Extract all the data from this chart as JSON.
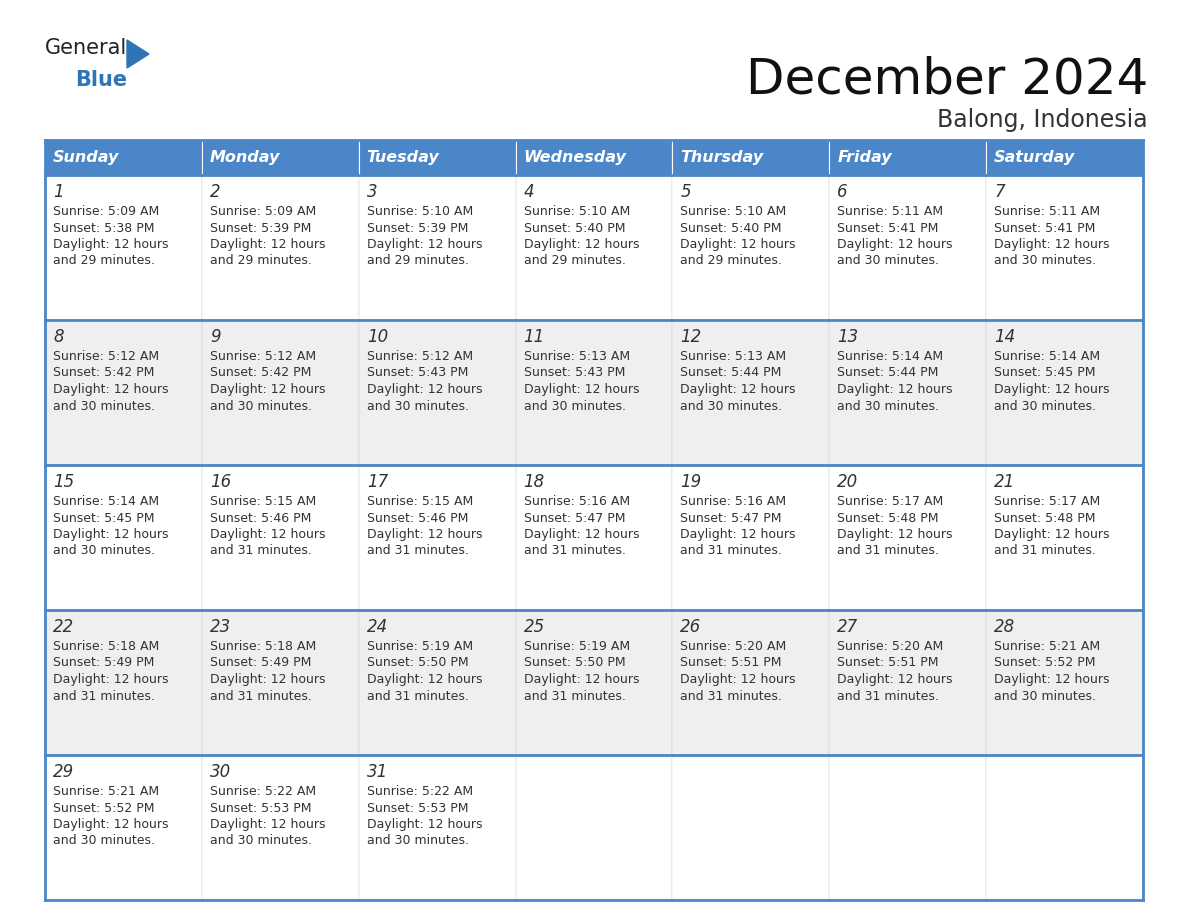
{
  "title": "December 2024",
  "subtitle": "Balong, Indonesia",
  "header_color": "#4a86c8",
  "header_text_color": "#FFFFFF",
  "border_color": "#4a86c8",
  "cell_bg_even": "#FFFFFF",
  "cell_bg_odd": "#EFEFEF",
  "text_color": "#333333",
  "days_of_week": [
    "Sunday",
    "Monday",
    "Tuesday",
    "Wednesday",
    "Thursday",
    "Friday",
    "Saturday"
  ],
  "calendar_data": [
    [
      {
        "day": "1",
        "sunrise": "5:09 AM",
        "sunset": "5:38 PM",
        "daylight_line1": "Daylight: 12 hours",
        "daylight_line2": "and 29 minutes."
      },
      {
        "day": "2",
        "sunrise": "5:09 AM",
        "sunset": "5:39 PM",
        "daylight_line1": "Daylight: 12 hours",
        "daylight_line2": "and 29 minutes."
      },
      {
        "day": "3",
        "sunrise": "5:10 AM",
        "sunset": "5:39 PM",
        "daylight_line1": "Daylight: 12 hours",
        "daylight_line2": "and 29 minutes."
      },
      {
        "day": "4",
        "sunrise": "5:10 AM",
        "sunset": "5:40 PM",
        "daylight_line1": "Daylight: 12 hours",
        "daylight_line2": "and 29 minutes."
      },
      {
        "day": "5",
        "sunrise": "5:10 AM",
        "sunset": "5:40 PM",
        "daylight_line1": "Daylight: 12 hours",
        "daylight_line2": "and 29 minutes."
      },
      {
        "day": "6",
        "sunrise": "5:11 AM",
        "sunset": "5:41 PM",
        "daylight_line1": "Daylight: 12 hours",
        "daylight_line2": "and 30 minutes."
      },
      {
        "day": "7",
        "sunrise": "5:11 AM",
        "sunset": "5:41 PM",
        "daylight_line1": "Daylight: 12 hours",
        "daylight_line2": "and 30 minutes."
      }
    ],
    [
      {
        "day": "8",
        "sunrise": "5:12 AM",
        "sunset": "5:42 PM",
        "daylight_line1": "Daylight: 12 hours",
        "daylight_line2": "and 30 minutes."
      },
      {
        "day": "9",
        "sunrise": "5:12 AM",
        "sunset": "5:42 PM",
        "daylight_line1": "Daylight: 12 hours",
        "daylight_line2": "and 30 minutes."
      },
      {
        "day": "10",
        "sunrise": "5:12 AM",
        "sunset": "5:43 PM",
        "daylight_line1": "Daylight: 12 hours",
        "daylight_line2": "and 30 minutes."
      },
      {
        "day": "11",
        "sunrise": "5:13 AM",
        "sunset": "5:43 PM",
        "daylight_line1": "Daylight: 12 hours",
        "daylight_line2": "and 30 minutes."
      },
      {
        "day": "12",
        "sunrise": "5:13 AM",
        "sunset": "5:44 PM",
        "daylight_line1": "Daylight: 12 hours",
        "daylight_line2": "and 30 minutes."
      },
      {
        "day": "13",
        "sunrise": "5:14 AM",
        "sunset": "5:44 PM",
        "daylight_line1": "Daylight: 12 hours",
        "daylight_line2": "and 30 minutes."
      },
      {
        "day": "14",
        "sunrise": "5:14 AM",
        "sunset": "5:45 PM",
        "daylight_line1": "Daylight: 12 hours",
        "daylight_line2": "and 30 minutes."
      }
    ],
    [
      {
        "day": "15",
        "sunrise": "5:14 AM",
        "sunset": "5:45 PM",
        "daylight_line1": "Daylight: 12 hours",
        "daylight_line2": "and 30 minutes."
      },
      {
        "day": "16",
        "sunrise": "5:15 AM",
        "sunset": "5:46 PM",
        "daylight_line1": "Daylight: 12 hours",
        "daylight_line2": "and 31 minutes."
      },
      {
        "day": "17",
        "sunrise": "5:15 AM",
        "sunset": "5:46 PM",
        "daylight_line1": "Daylight: 12 hours",
        "daylight_line2": "and 31 minutes."
      },
      {
        "day": "18",
        "sunrise": "5:16 AM",
        "sunset": "5:47 PM",
        "daylight_line1": "Daylight: 12 hours",
        "daylight_line2": "and 31 minutes."
      },
      {
        "day": "19",
        "sunrise": "5:16 AM",
        "sunset": "5:47 PM",
        "daylight_line1": "Daylight: 12 hours",
        "daylight_line2": "and 31 minutes."
      },
      {
        "day": "20",
        "sunrise": "5:17 AM",
        "sunset": "5:48 PM",
        "daylight_line1": "Daylight: 12 hours",
        "daylight_line2": "and 31 minutes."
      },
      {
        "day": "21",
        "sunrise": "5:17 AM",
        "sunset": "5:48 PM",
        "daylight_line1": "Daylight: 12 hours",
        "daylight_line2": "and 31 minutes."
      }
    ],
    [
      {
        "day": "22",
        "sunrise": "5:18 AM",
        "sunset": "5:49 PM",
        "daylight_line1": "Daylight: 12 hours",
        "daylight_line2": "and 31 minutes."
      },
      {
        "day": "23",
        "sunrise": "5:18 AM",
        "sunset": "5:49 PM",
        "daylight_line1": "Daylight: 12 hours",
        "daylight_line2": "and 31 minutes."
      },
      {
        "day": "24",
        "sunrise": "5:19 AM",
        "sunset": "5:50 PM",
        "daylight_line1": "Daylight: 12 hours",
        "daylight_line2": "and 31 minutes."
      },
      {
        "day": "25",
        "sunrise": "5:19 AM",
        "sunset": "5:50 PM",
        "daylight_line1": "Daylight: 12 hours",
        "daylight_line2": "and 31 minutes."
      },
      {
        "day": "26",
        "sunrise": "5:20 AM",
        "sunset": "5:51 PM",
        "daylight_line1": "Daylight: 12 hours",
        "daylight_line2": "and 31 minutes."
      },
      {
        "day": "27",
        "sunrise": "5:20 AM",
        "sunset": "5:51 PM",
        "daylight_line1": "Daylight: 12 hours",
        "daylight_line2": "and 31 minutes."
      },
      {
        "day": "28",
        "sunrise": "5:21 AM",
        "sunset": "5:52 PM",
        "daylight_line1": "Daylight: 12 hours",
        "daylight_line2": "and 30 minutes."
      }
    ],
    [
      {
        "day": "29",
        "sunrise": "5:21 AM",
        "sunset": "5:52 PM",
        "daylight_line1": "Daylight: 12 hours",
        "daylight_line2": "and 30 minutes."
      },
      {
        "day": "30",
        "sunrise": "5:22 AM",
        "sunset": "5:53 PM",
        "daylight_line1": "Daylight: 12 hours",
        "daylight_line2": "and 30 minutes."
      },
      {
        "day": "31",
        "sunrise": "5:22 AM",
        "sunset": "5:53 PM",
        "daylight_line1": "Daylight: 12 hours",
        "daylight_line2": "and 30 minutes."
      },
      null,
      null,
      null,
      null
    ]
  ],
  "logo_general_color": "#222222",
  "logo_blue_color": "#2E75B6",
  "logo_triangle_color": "#2E75B6",
  "title_color": "#111111",
  "subtitle_color": "#333333"
}
